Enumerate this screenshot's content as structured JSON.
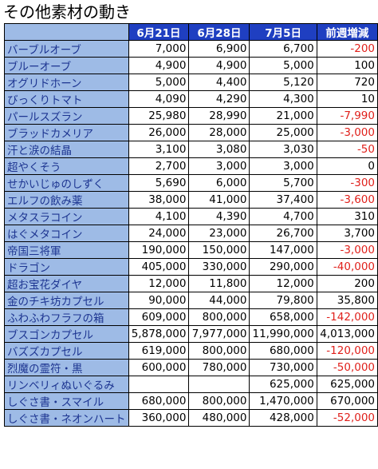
{
  "title": "その他素材の動き",
  "colors": {
    "header_bg": "#1f3fc1",
    "name_bg": "#9ebbe6",
    "name_text": "#1d3591",
    "negative": "#e0201b",
    "positive": "#000000"
  },
  "headers": [
    "6月21日",
    "6月28日",
    "7月5日",
    "前週増減"
  ],
  "rows": [
    {
      "name": "バーブルオーブ",
      "v1": "7,000",
      "v2": "6,900",
      "v3": "6,700",
      "diff": "-200",
      "neg": true
    },
    {
      "name": "ブルーオーブ",
      "v1": "4,900",
      "v2": "4,900",
      "v3": "5,000",
      "diff": "100",
      "neg": false
    },
    {
      "name": "オグリドホーン",
      "v1": "5,000",
      "v2": "4,400",
      "v3": "5,120",
      "diff": "720",
      "neg": false
    },
    {
      "name": "びっくりトマト",
      "v1": "4,090",
      "v2": "4,290",
      "v3": "4,300",
      "diff": "10",
      "neg": false
    },
    {
      "name": "パールスズラン",
      "v1": "25,980",
      "v2": "28,990",
      "v3": "21,000",
      "diff": "-7,990",
      "neg": true
    },
    {
      "name": "ブラッドカメリア",
      "v1": "26,000",
      "v2": "28,000",
      "v3": "25,000",
      "diff": "-3,000",
      "neg": true
    },
    {
      "name": "汗と涙の結晶",
      "v1": "3,100",
      "v2": "3,080",
      "v3": "3,030",
      "diff": "-50",
      "neg": true
    },
    {
      "name": "超やくそう",
      "v1": "2,700",
      "v2": "3,000",
      "v3": "3,000",
      "diff": "0",
      "neg": false
    },
    {
      "name": "せかいじゅのしずく",
      "v1": "5,690",
      "v2": "6,000",
      "v3": "5,700",
      "diff": "-300",
      "neg": true
    },
    {
      "name": "エルフの飲み薬",
      "v1": "38,000",
      "v2": "41,000",
      "v3": "37,400",
      "diff": "-3,600",
      "neg": true
    },
    {
      "name": "メタスラコイン",
      "v1": "4,100",
      "v2": "4,390",
      "v3": "4,700",
      "diff": "310",
      "neg": false
    },
    {
      "name": "はぐメタコイン",
      "v1": "24,000",
      "v2": "23,000",
      "v3": "26,700",
      "diff": "3,700",
      "neg": false
    },
    {
      "name": "帝国三将軍",
      "v1": "190,000",
      "v2": "150,000",
      "v3": "147,000",
      "diff": "-3,000",
      "neg": true
    },
    {
      "name": "ドラゴン",
      "v1": "405,000",
      "v2": "330,000",
      "v3": "290,000",
      "diff": "-40,000",
      "neg": true
    },
    {
      "name": "超お宝花ダイヤ",
      "v1": "12,000",
      "v2": "11,800",
      "v3": "12,000",
      "diff": "200",
      "neg": false
    },
    {
      "name": "金のチキ坊カプセル",
      "v1": "90,000",
      "v2": "44,000",
      "v3": "79,800",
      "diff": "35,800",
      "neg": false
    },
    {
      "name": "ふわふわフラフの箱",
      "v1": "609,000",
      "v2": "800,000",
      "v3": "658,000",
      "diff": "-142,000",
      "neg": true
    },
    {
      "name": "ブスゴンカプセル",
      "v1": "5,878,000",
      "v2": "7,977,000",
      "v3": "11,990,000",
      "diff": "4,013,000",
      "neg": false
    },
    {
      "name": "バズズカプセル",
      "v1": "619,000",
      "v2": "800,000",
      "v3": "680,000",
      "diff": "-120,000",
      "neg": true
    },
    {
      "name": "烈魔の霊符・黒",
      "v1": "600,000",
      "v2": "780,000",
      "v3": "730,000",
      "diff": "-50,000",
      "neg": true
    },
    {
      "name": "リンベリィぬいぐるみ",
      "v1": "",
      "v2": "",
      "v3": "625,000",
      "diff": "625,000",
      "neg": false
    },
    {
      "name": "しぐさ書・スマイル",
      "v1": "680,000",
      "v2": "800,000",
      "v3": "1,470,000",
      "diff": "670,000",
      "neg": false
    },
    {
      "name": "しぐさ書・ネオンハート",
      "v1": "360,000",
      "v2": "480,000",
      "v3": "428,000",
      "diff": "-52,000",
      "neg": true
    }
  ]
}
